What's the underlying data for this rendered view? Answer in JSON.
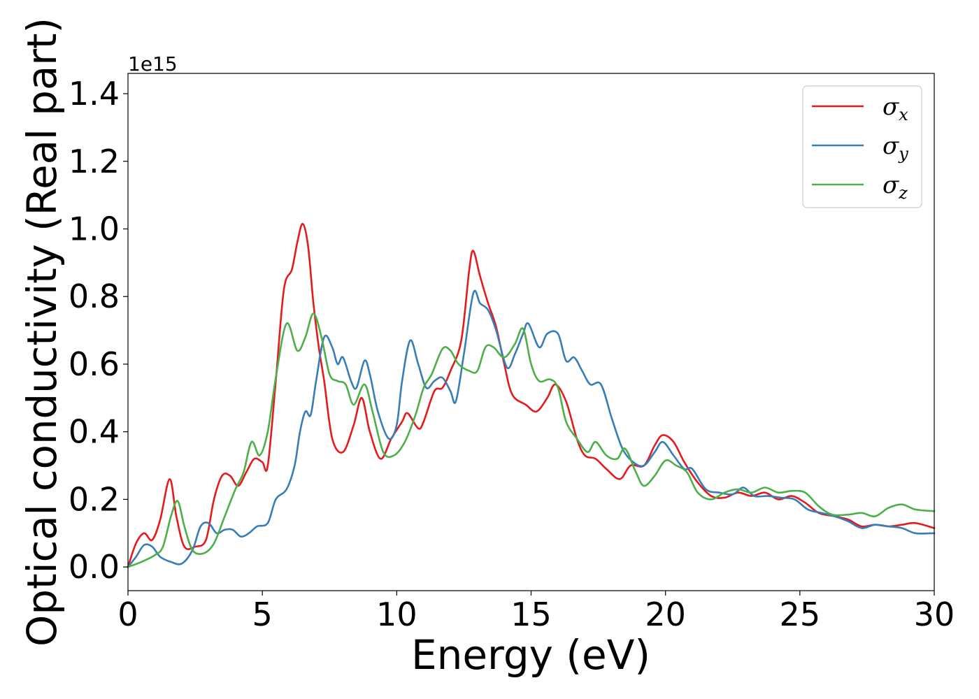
{
  "chart_data": {
    "type": "line",
    "xlabel": "Energy (eV)",
    "ylabel": "Optical conductivity (Real part)",
    "offset_text": "1e15",
    "xlim": [
      0,
      30
    ],
    "ylim": [
      -0.07,
      1.46
    ],
    "x_ticks": [
      0,
      5,
      10,
      15,
      20,
      25,
      30
    ],
    "x_tick_labels": [
      "0",
      "5",
      "10",
      "15",
      "20",
      "25",
      "30"
    ],
    "y_ticks": [
      0.0,
      0.2,
      0.4,
      0.6,
      0.8,
      1.0,
      1.2,
      1.4
    ],
    "y_tick_labels": [
      "0.0",
      "0.2",
      "0.4",
      "0.6",
      "0.8",
      "1.0",
      "1.2",
      "1.4"
    ],
    "grid": false,
    "legend_position": "top-right",
    "series": [
      {
        "name": "σx",
        "name_base": "σ",
        "name_sub": "x",
        "color": "#e41a1c",
        "points": [
          [
            0,
            0
          ],
          [
            0.3,
            0.07
          ],
          [
            0.6,
            0.1
          ],
          [
            0.9,
            0.08
          ],
          [
            1.2,
            0.14
          ],
          [
            1.55,
            0.26
          ],
          [
            1.8,
            0.15
          ],
          [
            2.1,
            0.06
          ],
          [
            2.5,
            0.06
          ],
          [
            2.9,
            0.08
          ],
          [
            3.2,
            0.2
          ],
          [
            3.5,
            0.27
          ],
          [
            3.8,
            0.27
          ],
          [
            4.1,
            0.24
          ],
          [
            4.4,
            0.28
          ],
          [
            4.7,
            0.32
          ],
          [
            5.0,
            0.31
          ],
          [
            5.2,
            0.3
          ],
          [
            5.5,
            0.55
          ],
          [
            5.8,
            0.82
          ],
          [
            6.1,
            0.88
          ],
          [
            6.3,
            0.96
          ],
          [
            6.5,
            1.015
          ],
          [
            6.7,
            0.95
          ],
          [
            6.9,
            0.78
          ],
          [
            7.1,
            0.65
          ],
          [
            7.3,
            0.55
          ],
          [
            7.6,
            0.38
          ],
          [
            8.0,
            0.34
          ],
          [
            8.4,
            0.42
          ],
          [
            8.7,
            0.5
          ],
          [
            9.0,
            0.4
          ],
          [
            9.4,
            0.32
          ],
          [
            9.8,
            0.38
          ],
          [
            10.2,
            0.43
          ],
          [
            10.4,
            0.455
          ],
          [
            10.8,
            0.41
          ],
          [
            11.0,
            0.43
          ],
          [
            11.4,
            0.52
          ],
          [
            11.7,
            0.53
          ],
          [
            12.0,
            0.58
          ],
          [
            12.4,
            0.67
          ],
          [
            12.7,
            0.88
          ],
          [
            12.85,
            0.935
          ],
          [
            13.1,
            0.86
          ],
          [
            13.4,
            0.78
          ],
          [
            13.7,
            0.71
          ],
          [
            14.0,
            0.6
          ],
          [
            14.3,
            0.51
          ],
          [
            14.8,
            0.48
          ],
          [
            15.2,
            0.46
          ],
          [
            15.6,
            0.5
          ],
          [
            15.9,
            0.54
          ],
          [
            16.3,
            0.49
          ],
          [
            16.7,
            0.38
          ],
          [
            17.0,
            0.33
          ],
          [
            17.4,
            0.32
          ],
          [
            17.8,
            0.29
          ],
          [
            18.3,
            0.26
          ],
          [
            18.7,
            0.3
          ],
          [
            19.2,
            0.3
          ],
          [
            19.6,
            0.36
          ],
          [
            19.9,
            0.39
          ],
          [
            20.3,
            0.37
          ],
          [
            20.7,
            0.31
          ],
          [
            21.2,
            0.25
          ],
          [
            21.7,
            0.21
          ],
          [
            22.2,
            0.205
          ],
          [
            22.7,
            0.22
          ],
          [
            23.2,
            0.21
          ],
          [
            23.7,
            0.22
          ],
          [
            24.2,
            0.2
          ],
          [
            24.7,
            0.21
          ],
          [
            25.2,
            0.19
          ],
          [
            25.7,
            0.16
          ],
          [
            26.3,
            0.15
          ],
          [
            26.8,
            0.14
          ],
          [
            27.3,
            0.12
          ],
          [
            27.8,
            0.125
          ],
          [
            28.3,
            0.12
          ],
          [
            28.8,
            0.125
          ],
          [
            29.3,
            0.13
          ],
          [
            30.0,
            0.115
          ]
        ]
      },
      {
        "name": "σy",
        "name_base": "σ",
        "name_sub": "y",
        "color": "#377eb8",
        "points": [
          [
            0,
            0
          ],
          [
            0.3,
            0.03
          ],
          [
            0.6,
            0.065
          ],
          [
            0.9,
            0.06
          ],
          [
            1.2,
            0.03
          ],
          [
            1.6,
            0.015
          ],
          [
            2.0,
            0.01
          ],
          [
            2.4,
            0.05
          ],
          [
            2.7,
            0.12
          ],
          [
            3.0,
            0.13
          ],
          [
            3.3,
            0.1
          ],
          [
            3.6,
            0.11
          ],
          [
            3.9,
            0.11
          ],
          [
            4.2,
            0.09
          ],
          [
            4.5,
            0.1
          ],
          [
            4.8,
            0.12
          ],
          [
            5.2,
            0.13
          ],
          [
            5.5,
            0.2
          ],
          [
            5.9,
            0.23
          ],
          [
            6.2,
            0.3
          ],
          [
            6.4,
            0.4
          ],
          [
            6.6,
            0.46
          ],
          [
            6.8,
            0.45
          ],
          [
            7.0,
            0.55
          ],
          [
            7.3,
            0.68
          ],
          [
            7.6,
            0.65
          ],
          [
            7.8,
            0.6
          ],
          [
            8.0,
            0.62
          ],
          [
            8.3,
            0.55
          ],
          [
            8.5,
            0.53
          ],
          [
            8.8,
            0.61
          ],
          [
            9.0,
            0.57
          ],
          [
            9.3,
            0.46
          ],
          [
            9.7,
            0.38
          ],
          [
            10.0,
            0.42
          ],
          [
            10.2,
            0.55
          ],
          [
            10.5,
            0.67
          ],
          [
            10.8,
            0.6
          ],
          [
            11.1,
            0.53
          ],
          [
            11.4,
            0.55
          ],
          [
            11.7,
            0.56
          ],
          [
            12.0,
            0.52
          ],
          [
            12.2,
            0.49
          ],
          [
            12.5,
            0.63
          ],
          [
            12.85,
            0.81
          ],
          [
            13.1,
            0.78
          ],
          [
            13.4,
            0.76
          ],
          [
            13.7,
            0.7
          ],
          [
            14.1,
            0.59
          ],
          [
            14.4,
            0.63
          ],
          [
            14.7,
            0.69
          ],
          [
            14.9,
            0.72
          ],
          [
            15.3,
            0.65
          ],
          [
            15.6,
            0.69
          ],
          [
            16.0,
            0.69
          ],
          [
            16.3,
            0.61
          ],
          [
            16.6,
            0.62
          ],
          [
            16.9,
            0.58
          ],
          [
            17.2,
            0.54
          ],
          [
            17.6,
            0.54
          ],
          [
            18.0,
            0.44
          ],
          [
            18.4,
            0.35
          ],
          [
            18.8,
            0.31
          ],
          [
            19.2,
            0.3
          ],
          [
            19.6,
            0.34
          ],
          [
            19.9,
            0.37
          ],
          [
            20.3,
            0.33
          ],
          [
            20.7,
            0.29
          ],
          [
            21.0,
            0.29
          ],
          [
            21.5,
            0.23
          ],
          [
            22.0,
            0.22
          ],
          [
            22.5,
            0.215
          ],
          [
            22.9,
            0.235
          ],
          [
            23.3,
            0.21
          ],
          [
            23.8,
            0.21
          ],
          [
            24.3,
            0.205
          ],
          [
            24.8,
            0.2
          ],
          [
            25.3,
            0.17
          ],
          [
            25.8,
            0.16
          ],
          [
            26.3,
            0.15
          ],
          [
            26.8,
            0.135
          ],
          [
            27.3,
            0.115
          ],
          [
            27.8,
            0.125
          ],
          [
            28.3,
            0.12
          ],
          [
            28.8,
            0.115
          ],
          [
            29.3,
            0.1
          ],
          [
            30.0,
            0.1
          ]
        ]
      },
      {
        "name": "σz",
        "name_base": "σ",
        "name_sub": "z",
        "color": "#4daf4a",
        "points": [
          [
            0,
            0
          ],
          [
            0.5,
            0.015
          ],
          [
            1.0,
            0.035
          ],
          [
            1.3,
            0.06
          ],
          [
            1.6,
            0.15
          ],
          [
            1.85,
            0.195
          ],
          [
            2.1,
            0.12
          ],
          [
            2.4,
            0.05
          ],
          [
            2.8,
            0.04
          ],
          [
            3.2,
            0.07
          ],
          [
            3.6,
            0.15
          ],
          [
            4.0,
            0.23
          ],
          [
            4.3,
            0.28
          ],
          [
            4.6,
            0.37
          ],
          [
            4.9,
            0.33
          ],
          [
            5.2,
            0.4
          ],
          [
            5.5,
            0.56
          ],
          [
            5.9,
            0.72
          ],
          [
            6.3,
            0.64
          ],
          [
            6.6,
            0.68
          ],
          [
            6.9,
            0.75
          ],
          [
            7.2,
            0.68
          ],
          [
            7.5,
            0.57
          ],
          [
            7.8,
            0.55
          ],
          [
            8.1,
            0.54
          ],
          [
            8.4,
            0.48
          ],
          [
            8.8,
            0.54
          ],
          [
            9.1,
            0.46
          ],
          [
            9.5,
            0.34
          ],
          [
            9.9,
            0.33
          ],
          [
            10.3,
            0.37
          ],
          [
            10.7,
            0.45
          ],
          [
            11.0,
            0.53
          ],
          [
            11.3,
            0.57
          ],
          [
            11.7,
            0.645
          ],
          [
            12.0,
            0.64
          ],
          [
            12.3,
            0.6
          ],
          [
            12.7,
            0.58
          ],
          [
            13.0,
            0.58
          ],
          [
            13.3,
            0.65
          ],
          [
            13.6,
            0.65
          ],
          [
            14.0,
            0.62
          ],
          [
            14.4,
            0.66
          ],
          [
            14.7,
            0.705
          ],
          [
            15.0,
            0.6
          ],
          [
            15.3,
            0.55
          ],
          [
            15.7,
            0.555
          ],
          [
            16.0,
            0.53
          ],
          [
            16.3,
            0.43
          ],
          [
            16.7,
            0.38
          ],
          [
            17.1,
            0.34
          ],
          [
            17.4,
            0.37
          ],
          [
            17.8,
            0.33
          ],
          [
            18.2,
            0.32
          ],
          [
            18.5,
            0.35
          ],
          [
            18.9,
            0.28
          ],
          [
            19.2,
            0.24
          ],
          [
            19.6,
            0.27
          ],
          [
            20.0,
            0.315
          ],
          [
            20.4,
            0.3
          ],
          [
            20.8,
            0.28
          ],
          [
            21.2,
            0.22
          ],
          [
            21.7,
            0.2
          ],
          [
            22.2,
            0.22
          ],
          [
            22.7,
            0.23
          ],
          [
            23.2,
            0.22
          ],
          [
            23.7,
            0.235
          ],
          [
            24.2,
            0.22
          ],
          [
            24.7,
            0.225
          ],
          [
            25.2,
            0.22
          ],
          [
            25.7,
            0.18
          ],
          [
            26.2,
            0.155
          ],
          [
            26.8,
            0.155
          ],
          [
            27.3,
            0.16
          ],
          [
            27.8,
            0.15
          ],
          [
            28.3,
            0.175
          ],
          [
            28.8,
            0.185
          ],
          [
            29.3,
            0.17
          ],
          [
            30.0,
            0.165
          ]
        ]
      }
    ]
  }
}
